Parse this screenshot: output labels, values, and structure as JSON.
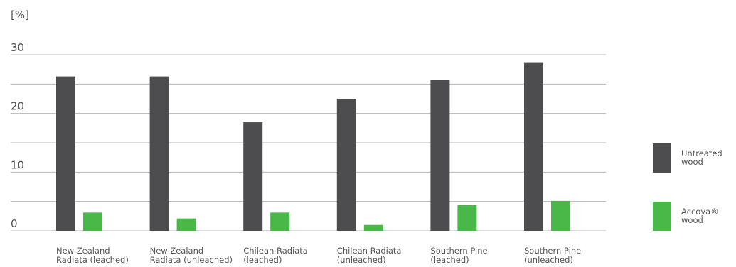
{
  "chart_data": {
    "type": "bar",
    "unit_label": "[%]",
    "ylim": [
      0,
      30
    ],
    "yticks": [
      0,
      10,
      20,
      30
    ],
    "grid": true,
    "legend_position": "right",
    "categories": [
      [
        "New Zealand",
        "Radiata (leached)"
      ],
      [
        "New Zealand",
        "Radiata (unleached)"
      ],
      [
        "Chilean Radiata",
        "(leached)"
      ],
      [
        "Chilean Radiata",
        "(unleached)"
      ],
      [
        "Southern Pine",
        "(leached)"
      ],
      [
        "Southern Pine",
        "(unleached)"
      ]
    ],
    "series": [
      {
        "name": [
          "Untreated",
          "wood"
        ],
        "color": "#4d4d4f",
        "values": [
          26.3,
          26.3,
          18.5,
          22.5,
          25.7,
          28.6
        ]
      },
      {
        "name": [
          "Accoya®",
          "wood"
        ],
        "color": "#4ab848",
        "values": [
          3.1,
          2.1,
          3.1,
          1.0,
          4.4,
          5.1
        ]
      }
    ]
  }
}
